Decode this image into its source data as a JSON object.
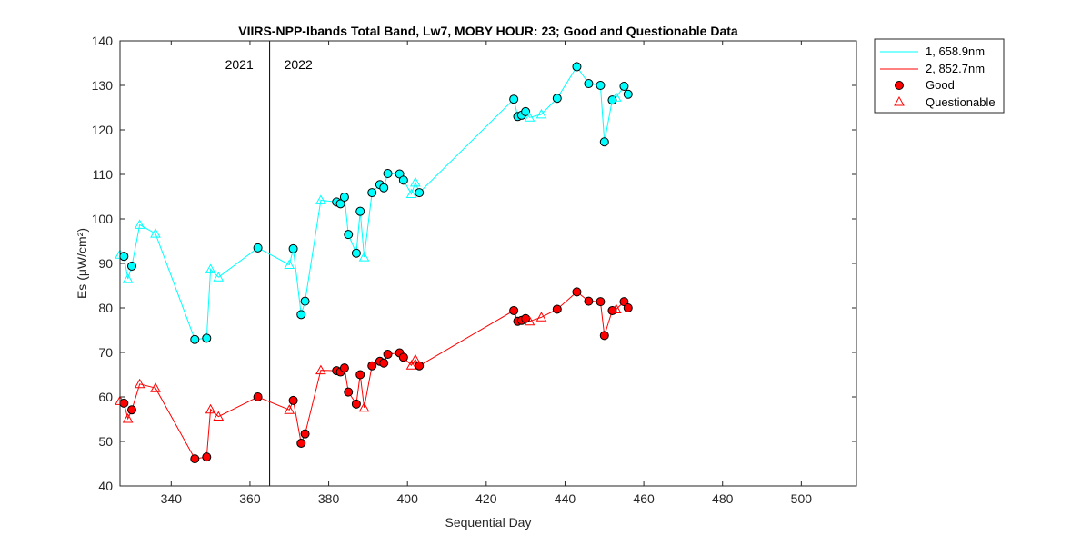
{
  "chart_data": {
    "type": "line",
    "title": "VIIRS-NPP-Ibands Total Band,  Lw7, MOBY HOUR: 23;  Good and Questionable Data",
    "xlabel": "Sequential Day",
    "ylabel": "Es (μW/cm²)",
    "xlim": [
      327,
      514
    ],
    "ylim": [
      40,
      140
    ],
    "xticks": [
      340,
      360,
      380,
      400,
      420,
      440,
      460,
      480,
      500
    ],
    "yticks": [
      40,
      50,
      60,
      70,
      80,
      90,
      100,
      110,
      120,
      130,
      140
    ],
    "grid": false,
    "legend_position": "outside-top-right",
    "year_divider": {
      "x": 365,
      "left_label": "2021",
      "right_label": "2022"
    },
    "legend": {
      "line1": "1, 658.9nm",
      "line2": "2, 852.7nm",
      "good": "Good",
      "questionable": "Questionable"
    },
    "series": [
      {
        "name": "1, 658.9nm",
        "color": "#00ffff",
        "points": [
          {
            "x": 327,
            "y": 92.0,
            "q": "Q"
          },
          {
            "x": 328,
            "y": 91.6,
            "q": "G"
          },
          {
            "x": 329,
            "y": 86.5,
            "q": "Q"
          },
          {
            "x": 330,
            "y": 89.4,
            "q": "G"
          },
          {
            "x": 332,
            "y": 98.7,
            "q": "Q"
          },
          {
            "x": 336,
            "y": 96.7,
            "q": "Q"
          },
          {
            "x": 346,
            "y": 72.9,
            "q": "G"
          },
          {
            "x": 349,
            "y": 73.2,
            "q": "G"
          },
          {
            "x": 350,
            "y": 88.7,
            "q": "Q"
          },
          {
            "x": 352,
            "y": 86.9,
            "q": "Q"
          },
          {
            "x": 362,
            "y": 93.5,
            "q": "G"
          },
          {
            "x": 370,
            "y": 89.7,
            "q": "Q"
          },
          {
            "x": 371,
            "y": 93.3,
            "q": "G"
          },
          {
            "x": 373,
            "y": 78.5,
            "q": "G"
          },
          {
            "x": 374,
            "y": 81.5,
            "q": "G"
          },
          {
            "x": 378,
            "y": 104.2,
            "q": "Q"
          },
          {
            "x": 382,
            "y": 103.8,
            "q": "G"
          },
          {
            "x": 383,
            "y": 103.4,
            "q": "G"
          },
          {
            "x": 384,
            "y": 104.9,
            "q": "G"
          },
          {
            "x": 385,
            "y": 96.5,
            "q": "G"
          },
          {
            "x": 387,
            "y": 92.3,
            "q": "G"
          },
          {
            "x": 388,
            "y": 101.7,
            "q": "G"
          },
          {
            "x": 389,
            "y": 91.4,
            "q": "Q"
          },
          {
            "x": 391,
            "y": 105.9,
            "q": "G"
          },
          {
            "x": 393,
            "y": 107.7,
            "q": "G"
          },
          {
            "x": 394,
            "y": 107.0,
            "q": "G"
          },
          {
            "x": 395,
            "y": 110.2,
            "q": "G"
          },
          {
            "x": 398,
            "y": 110.1,
            "q": "G"
          },
          {
            "x": 399,
            "y": 108.7,
            "q": "G"
          },
          {
            "x": 401,
            "y": 105.6,
            "q": "Q"
          },
          {
            "x": 402,
            "y": 108.2,
            "q": "Q"
          },
          {
            "x": 403,
            "y": 105.9,
            "q": "G"
          },
          {
            "x": 427,
            "y": 126.9,
            "q": "G"
          },
          {
            "x": 428,
            "y": 123.0,
            "q": "G"
          },
          {
            "x": 429,
            "y": 123.3,
            "q": "G"
          },
          {
            "x": 430,
            "y": 124.1,
            "q": "G"
          },
          {
            "x": 431,
            "y": 122.8,
            "q": "Q"
          },
          {
            "x": 434,
            "y": 123.5,
            "q": "Q"
          },
          {
            "x": 438,
            "y": 127.1,
            "q": "G"
          },
          {
            "x": 443,
            "y": 134.2,
            "q": "G"
          },
          {
            "x": 446,
            "y": 130.4,
            "q": "G"
          },
          {
            "x": 449,
            "y": 130.0,
            "q": "G"
          },
          {
            "x": 450,
            "y": 117.3,
            "q": "G"
          },
          {
            "x": 452,
            "y": 126.7,
            "q": "G"
          },
          {
            "x": 453,
            "y": 127.3,
            "q": "Q"
          },
          {
            "x": 455,
            "y": 129.8,
            "q": "G"
          },
          {
            "x": 456,
            "y": 128.0,
            "q": "G"
          }
        ]
      },
      {
        "name": "2, 852.7nm",
        "color": "#ff0000",
        "points": [
          {
            "x": 327,
            "y": 59.1,
            "q": "Q"
          },
          {
            "x": 328,
            "y": 58.6,
            "q": "G"
          },
          {
            "x": 329,
            "y": 55.1,
            "q": "Q"
          },
          {
            "x": 330,
            "y": 57.1,
            "q": "G"
          },
          {
            "x": 332,
            "y": 62.9,
            "q": "Q"
          },
          {
            "x": 336,
            "y": 62.0,
            "q": "Q"
          },
          {
            "x": 346,
            "y": 46.1,
            "q": "G"
          },
          {
            "x": 349,
            "y": 46.5,
            "q": "G"
          },
          {
            "x": 350,
            "y": 57.2,
            "q": "Q"
          },
          {
            "x": 352,
            "y": 55.6,
            "q": "Q"
          },
          {
            "x": 362,
            "y": 60.0,
            "q": "G"
          },
          {
            "x": 370,
            "y": 57.1,
            "q": "Q"
          },
          {
            "x": 371,
            "y": 59.2,
            "q": "G"
          },
          {
            "x": 373,
            "y": 49.6,
            "q": "G"
          },
          {
            "x": 374,
            "y": 51.7,
            "q": "G"
          },
          {
            "x": 378,
            "y": 66.0,
            "q": "Q"
          },
          {
            "x": 382,
            "y": 65.9,
            "q": "G"
          },
          {
            "x": 383,
            "y": 65.6,
            "q": "G"
          },
          {
            "x": 384,
            "y": 66.5,
            "q": "G"
          },
          {
            "x": 385,
            "y": 61.1,
            "q": "G"
          },
          {
            "x": 387,
            "y": 58.4,
            "q": "G"
          },
          {
            "x": 388,
            "y": 65.0,
            "q": "G"
          },
          {
            "x": 389,
            "y": 57.6,
            "q": "Q"
          },
          {
            "x": 391,
            "y": 67.0,
            "q": "G"
          },
          {
            "x": 393,
            "y": 68.0,
            "q": "G"
          },
          {
            "x": 394,
            "y": 67.6,
            "q": "G"
          },
          {
            "x": 395,
            "y": 69.6,
            "q": "G"
          },
          {
            "x": 398,
            "y": 69.9,
            "q": "G"
          },
          {
            "x": 399,
            "y": 68.9,
            "q": "G"
          },
          {
            "x": 401,
            "y": 67.1,
            "q": "Q"
          },
          {
            "x": 402,
            "y": 68.4,
            "q": "Q"
          },
          {
            "x": 403,
            "y": 67.0,
            "q": "G"
          },
          {
            "x": 427,
            "y": 79.4,
            "q": "G"
          },
          {
            "x": 428,
            "y": 77.0,
            "q": "G"
          },
          {
            "x": 429,
            "y": 77.2,
            "q": "G"
          },
          {
            "x": 430,
            "y": 77.6,
            "q": "G"
          },
          {
            "x": 431,
            "y": 77.0,
            "q": "Q"
          },
          {
            "x": 434,
            "y": 77.9,
            "q": "Q"
          },
          {
            "x": 438,
            "y": 79.7,
            "q": "G"
          },
          {
            "x": 443,
            "y": 83.6,
            "q": "G"
          },
          {
            "x": 446,
            "y": 81.5,
            "q": "G"
          },
          {
            "x": 449,
            "y": 81.4,
            "q": "G"
          },
          {
            "x": 450,
            "y": 73.8,
            "q": "G"
          },
          {
            "x": 452,
            "y": 79.4,
            "q": "G"
          },
          {
            "x": 453,
            "y": 79.7,
            "q": "Q"
          },
          {
            "x": 455,
            "y": 81.4,
            "q": "G"
          },
          {
            "x": 456,
            "y": 80.0,
            "q": "G"
          }
        ]
      }
    ]
  }
}
